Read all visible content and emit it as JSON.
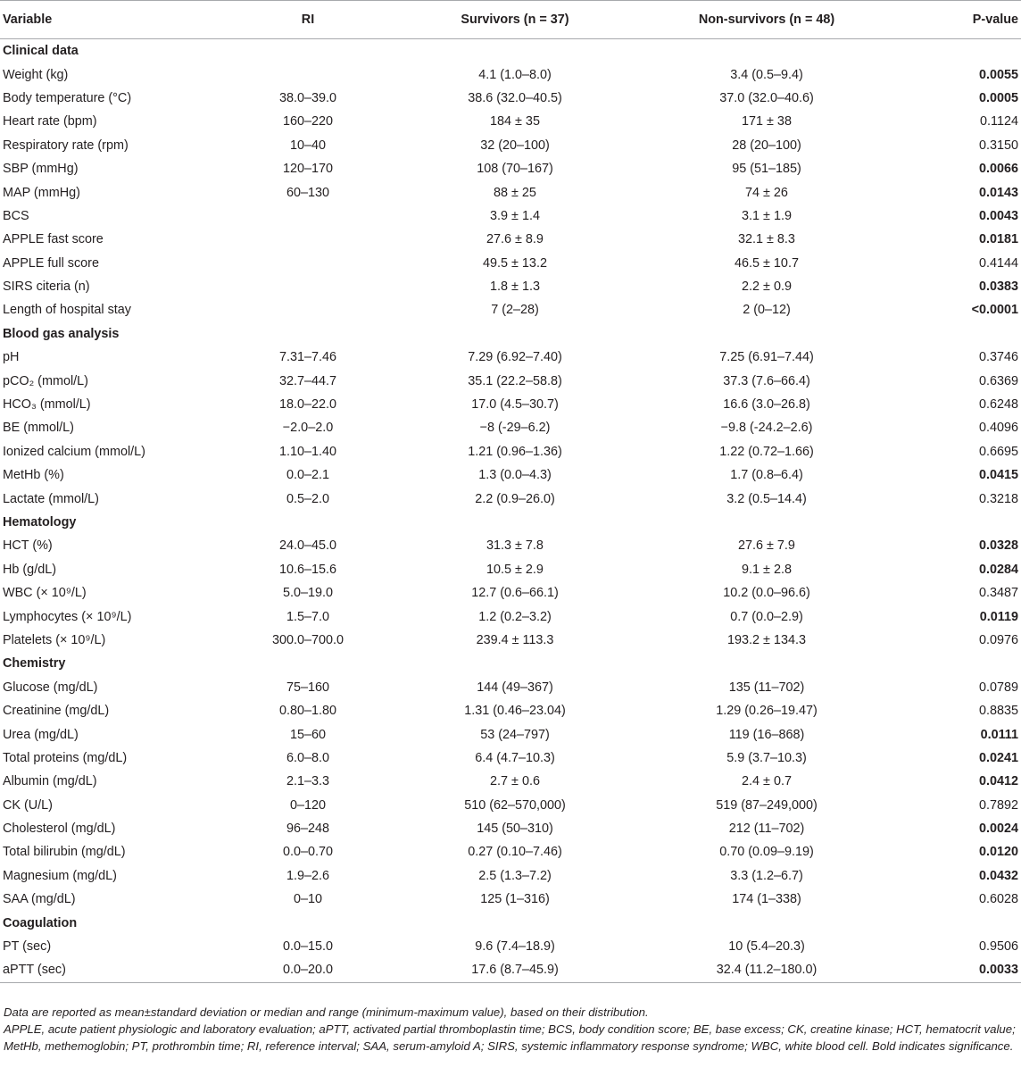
{
  "table": {
    "headers": {
      "variable": "Variable",
      "ri": "RI",
      "survivors": "Survivors (n = 37)",
      "non_survivors": "Non-survivors (n = 48)",
      "p_value": "P-value"
    },
    "rows": [
      {
        "type": "section",
        "label": "Clinical data"
      },
      {
        "label": "Weight (kg)",
        "ri": "",
        "survivors": "4.1 (1.0–8.0)",
        "non_survivors": "3.4 (0.5–9.4)",
        "p": "0.0055",
        "bold": true
      },
      {
        "label": "Body temperature (°C)",
        "ri": "38.0–39.0",
        "survivors": "38.6 (32.0–40.5)",
        "non_survivors": "37.0 (32.0–40.6)",
        "p": "0.0005",
        "bold": true
      },
      {
        "label": "Heart rate (bpm)",
        "ri": "160–220",
        "survivors": "184 ± 35",
        "non_survivors": "171 ± 38",
        "p": "0.1124",
        "bold": false
      },
      {
        "label": "Respiratory rate (rpm)",
        "ri": "10–40",
        "survivors": "32 (20–100)",
        "non_survivors": "28 (20–100)",
        "p": "0.3150",
        "bold": false
      },
      {
        "label": "SBP (mmHg)",
        "ri": "120–170",
        "survivors": "108 (70–167)",
        "non_survivors": "95 (51–185)",
        "p": "0.0066",
        "bold": true
      },
      {
        "label": "MAP (mmHg)",
        "ri": "60–130",
        "survivors": "88 ± 25",
        "non_survivors": "74 ± 26",
        "p": "0.0143",
        "bold": true
      },
      {
        "label": "BCS",
        "ri": "",
        "survivors": "3.9 ± 1.4",
        "non_survivors": "3.1 ± 1.9",
        "p": "0.0043",
        "bold": true
      },
      {
        "label": "APPLE fast score",
        "ri": "",
        "survivors": "27.6 ± 8.9",
        "non_survivors": "32.1 ± 8.3",
        "p": "0.0181",
        "bold": true
      },
      {
        "label": "APPLE full score",
        "ri": "",
        "survivors": "49.5 ± 13.2",
        "non_survivors": "46.5 ± 10.7",
        "p": "0.4144",
        "bold": false
      },
      {
        "label": "SIRS citeria (n)",
        "ri": "",
        "survivors": "1.8 ± 1.3",
        "non_survivors": "2.2 ± 0.9",
        "p": "0.0383",
        "bold": true
      },
      {
        "label": "Length of hospital stay",
        "ri": "",
        "survivors": "7 (2–28)",
        "non_survivors": "2 (0–12)",
        "p": "<0.0001",
        "bold": true
      },
      {
        "type": "section",
        "label": "Blood gas analysis"
      },
      {
        "label": "pH",
        "ri": "7.31–7.46",
        "survivors": "7.29 (6.92–7.40)",
        "non_survivors": "7.25 (6.91–7.44)",
        "p": "0.3746",
        "bold": false
      },
      {
        "label": "pCO₂ (mmol/L)",
        "ri": "32.7–44.7",
        "survivors": "35.1 (22.2–58.8)",
        "non_survivors": "37.3 (7.6–66.4)",
        "p": "0.6369",
        "bold": false
      },
      {
        "label": "HCO₃ (mmol/L)",
        "ri": "18.0–22.0",
        "survivors": "17.0 (4.5–30.7)",
        "non_survivors": "16.6 (3.0–26.8)",
        "p": "0.6248",
        "bold": false
      },
      {
        "label": "BE (mmol/L)",
        "ri": "−2.0–2.0",
        "survivors": "−8 (-29–6.2)",
        "non_survivors": "−9.8 (-24.2–2.6)",
        "p": "0.4096",
        "bold": false
      },
      {
        "label": "Ionized calcium (mmol/L)",
        "ri": "1.10–1.40",
        "survivors": "1.21 (0.96–1.36)",
        "non_survivors": "1.22 (0.72–1.66)",
        "p": "0.6695",
        "bold": false
      },
      {
        "label": "MetHb (%)",
        "ri": "0.0–2.1",
        "survivors": "1.3 (0.0–4.3)",
        "non_survivors": "1.7 (0.8–6.4)",
        "p": "0.0415",
        "bold": true
      },
      {
        "label": "Lactate (mmol/L)",
        "ri": "0.5–2.0",
        "survivors": "2.2 (0.9–26.0)",
        "non_survivors": "3.2 (0.5–14.4)",
        "p": "0.3218",
        "bold": false
      },
      {
        "type": "section",
        "label": "Hematology"
      },
      {
        "label": "HCT (%)",
        "ri": "24.0–45.0",
        "survivors": "31.3 ± 7.8",
        "non_survivors": "27.6 ± 7.9",
        "p": "0.0328",
        "bold": true
      },
      {
        "label": "Hb (g/dL)",
        "ri": "10.6–15.6",
        "survivors": "10.5 ± 2.9",
        "non_survivors": "9.1 ± 2.8",
        "p": "0.0284",
        "bold": true
      },
      {
        "label": "WBC (× 10⁹/L)",
        "ri": "5.0–19.0",
        "survivors": "12.7 (0.6–66.1)",
        "non_survivors": "10.2 (0.0–96.6)",
        "p": "0.3487",
        "bold": false
      },
      {
        "label": "Lymphocytes (× 10⁹/L)",
        "ri": "1.5–7.0",
        "survivors": "1.2 (0.2–3.2)",
        "non_survivors": "0.7 (0.0–2.9)",
        "p": "0.0119",
        "bold": true
      },
      {
        "label": "Platelets (× 10⁹/L)",
        "ri": "300.0–700.0",
        "survivors": "239.4 ± 113.3",
        "non_survivors": "193.2 ± 134.3",
        "p": "0.0976",
        "bold": false
      },
      {
        "type": "section",
        "label": "Chemistry"
      },
      {
        "label": "Glucose (mg/dL)",
        "ri": "75–160",
        "survivors": "144 (49–367)",
        "non_survivors": "135 (11–702)",
        "p": "0.0789",
        "bold": false
      },
      {
        "label": "Creatinine (mg/dL)",
        "ri": "0.80–1.80",
        "survivors": "1.31 (0.46–23.04)",
        "non_survivors": "1.29 (0.26–19.47)",
        "p": "0.8835",
        "bold": false
      },
      {
        "label": "Urea (mg/dL)",
        "ri": "15–60",
        "survivors": "53 (24–797)",
        "non_survivors": "119 (16–868)",
        "p": "0.0111",
        "bold": true
      },
      {
        "label": "Total proteins (mg/dL)",
        "ri": "6.0–8.0",
        "survivors": "6.4 (4.7–10.3)",
        "non_survivors": "5.9 (3.7–10.3)",
        "p": "0.0241",
        "bold": true
      },
      {
        "label": "Albumin (mg/dL)",
        "ri": "2.1–3.3",
        "survivors": "2.7 ± 0.6",
        "non_survivors": "2.4 ± 0.7",
        "p": "0.0412",
        "bold": true
      },
      {
        "label": "CK (U/L)",
        "ri": "0–120",
        "survivors": "510 (62–570,000)",
        "non_survivors": "519 (87–249,000)",
        "p": "0.7892",
        "bold": false
      },
      {
        "label": "Cholesterol (mg/dL)",
        "ri": "96–248",
        "survivors": "145 (50–310)",
        "non_survivors": "212 (11–702)",
        "p": "0.0024",
        "bold": true
      },
      {
        "label": "Total bilirubin (mg/dL)",
        "ri": "0.0–0.70",
        "survivors": "0.27 (0.10–7.46)",
        "non_survivors": "0.70 (0.09–9.19)",
        "p": "0.0120",
        "bold": true
      },
      {
        "label": "Magnesium (mg/dL)",
        "ri": "1.9–2.6",
        "survivors": "2.5 (1.3–7.2)",
        "non_survivors": "3.3 (1.2–6.7)",
        "p": "0.0432",
        "bold": true
      },
      {
        "label": "SAA (mg/dL)",
        "ri": "0–10",
        "survivors": "125 (1–316)",
        "non_survivors": "174 (1–338)",
        "p": "0.6028",
        "bold": false
      },
      {
        "type": "section",
        "label": "Coagulation"
      },
      {
        "label": "PT (sec)",
        "ri": "0.0–15.0",
        "survivors": "9.6 (7.4–18.9)",
        "non_survivors": "10 (5.4–20.3)",
        "p": "0.9506",
        "bold": false
      },
      {
        "label": "aPTT (sec)",
        "ri": "0.0–20.0",
        "survivors": "17.6 (8.7–45.9)",
        "non_survivors": "32.4 (11.2–180.0)",
        "p": "0.0033",
        "bold": true
      }
    ]
  },
  "footnotes": {
    "line1": "Data are reported as mean±standard deviation or median and range (minimum-maximum value), based on their distribution.",
    "line2": "APPLE, acute patient physiologic and laboratory evaluation; aPTT, activated partial thromboplastin time; BCS, body condition score; BE, base excess; CK, creatine kinase; HCT, hematocrit value; MetHb, methemoglobin; PT, prothrombin time; RI, reference interval; SAA, serum-amyloid A; SIRS, systemic inflammatory response syndrome; WBC, white blood cell. Bold indicates significance."
  }
}
